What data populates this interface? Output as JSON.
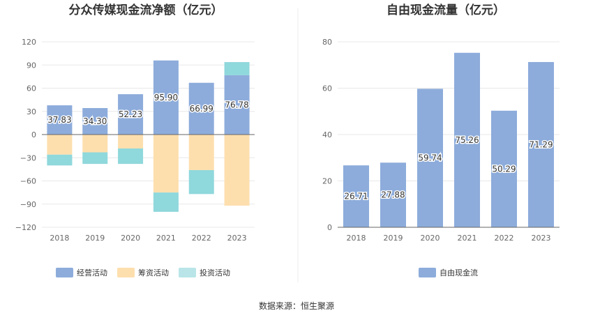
{
  "chart_data": [
    {
      "type": "bar",
      "stacked": true,
      "title": "分众传媒现金流净额（亿元）",
      "categories": [
        "2018",
        "2019",
        "2020",
        "2021",
        "2022",
        "2023"
      ],
      "ylim": [
        -120,
        120
      ],
      "yticks": [
        120,
        90,
        60,
        30,
        0,
        -30,
        -60,
        -90,
        -120
      ],
      "grid": true,
      "legend_position": "bottom",
      "series": [
        {
          "name": "经营活动",
          "color": "#8dacdb",
          "values": [
            37.83,
            34.3,
            52.23,
            95.9,
            66.99,
            76.78
          ],
          "labels": [
            "37.83",
            "34.30",
            "52.23",
            "95.90",
            "66.99",
            "76.78"
          ]
        },
        {
          "name": "筹资活动",
          "color": "#fddfae",
          "values": [
            -26,
            -23,
            -18,
            -75,
            -46,
            -92
          ]
        },
        {
          "name": "投资活动",
          "color": "#b9e5e8",
          "fill_color": "#8fd8dc",
          "values": [
            -14,
            -15,
            -20,
            -25,
            -31,
            17
          ]
        }
      ]
    },
    {
      "type": "bar",
      "title": "自由现金流量（亿元）",
      "categories": [
        "2018",
        "2019",
        "2020",
        "2021",
        "2022",
        "2023"
      ],
      "ylim": [
        0,
        80
      ],
      "yticks": [
        80,
        60,
        40,
        20,
        0
      ],
      "grid": true,
      "legend_position": "bottom",
      "series": [
        {
          "name": "自由现金流",
          "color": "#8dacdb",
          "values": [
            26.71,
            27.88,
            59.74,
            75.26,
            50.29,
            71.29
          ],
          "labels": [
            "26.71",
            "27.88",
            "59.74",
            "75.26",
            "50.29",
            "71.29"
          ]
        }
      ]
    }
  ],
  "footer": {
    "source": "数据来源：恒生聚源"
  }
}
